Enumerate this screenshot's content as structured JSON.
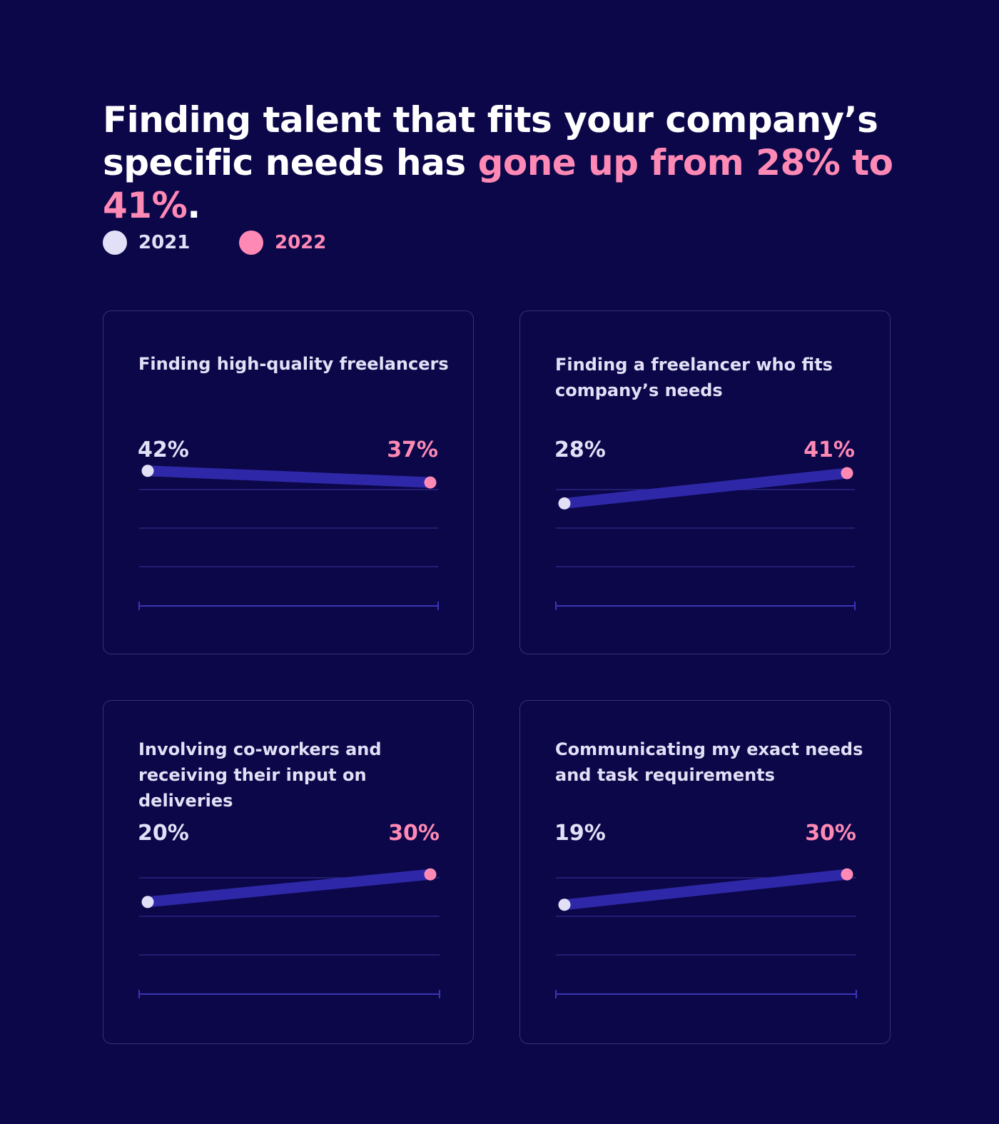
{
  "headline": {
    "pre": "Finding talent that fits your company’s specific needs has ",
    "highlight": "gone up from 28% to 41%",
    "post": "."
  },
  "legend": [
    {
      "label": "2021",
      "color": "#e2e0f7"
    },
    {
      "label": "2022",
      "color": "#ff89b5"
    }
  ],
  "colors": {
    "line": "#2e28a8",
    "grid": "#2a2680",
    "axis": "#3b35b5",
    "label_2021": "#e2e0f7",
    "label_2022": "#ff89b5"
  },
  "chart_data": [
    {
      "type": "line",
      "title": "Finding high-quality freelancers",
      "categories": [
        "2021",
        "2022"
      ],
      "values": [
        42,
        37
      ],
      "labels": [
        "42%",
        "37%"
      ],
      "ylim": [
        0,
        45
      ]
    },
    {
      "type": "line",
      "title": "Finding a freelancer who fits company’s needs",
      "categories": [
        "2021",
        "2022"
      ],
      "values": [
        28,
        41
      ],
      "labels": [
        "28%",
        "41%"
      ],
      "ylim": [
        0,
        45
      ]
    },
    {
      "type": "line",
      "title": "Involving co-workers and receiving their input on deliveries",
      "categories": [
        "2021",
        "2022"
      ],
      "values": [
        20,
        30
      ],
      "labels": [
        "20%",
        "30%"
      ],
      "ylim": [
        0,
        45
      ]
    },
    {
      "type": "line",
      "title": "Communicating my exact needs and task requirements",
      "categories": [
        "2021",
        "2022"
      ],
      "values": [
        19,
        30
      ],
      "labels": [
        "19%",
        "30%"
      ],
      "ylim": [
        0,
        45
      ]
    }
  ]
}
